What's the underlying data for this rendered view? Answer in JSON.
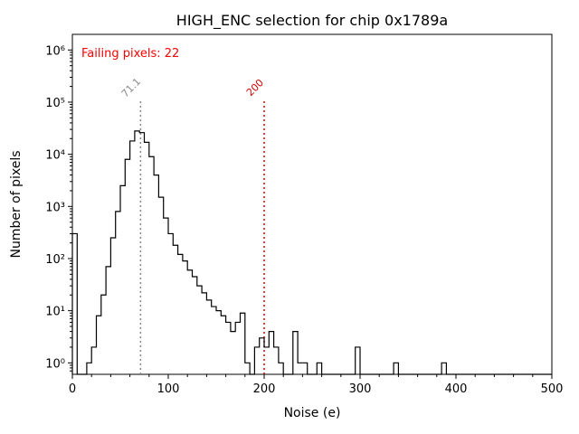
{
  "figure": {
    "background": "#ffffff"
  },
  "chart_data": {
    "type": "bar",
    "subtype": "step-histogram",
    "title": "HIGH_ENC selection for chip 0x1789a",
    "xlabel": "Noise (e)",
    "ylabel": "Number of pixels",
    "annotation": {
      "text": "Failing pixels: 22",
      "color": "#ff0000"
    },
    "line_color": "#000000",
    "x_ticks": [
      0,
      100,
      200,
      300,
      400,
      500
    ],
    "x_minor_tick_step": 20,
    "xlim": [
      0,
      500
    ],
    "y_log": true,
    "y_tick_labels": [
      "10⁰",
      "10¹",
      "10²",
      "10³",
      "10⁴",
      "10⁵",
      "10⁶"
    ],
    "y_tick_exponents": [
      0,
      1,
      2,
      3,
      4,
      5,
      6
    ],
    "y_range_exponents": [
      -0.22,
      6.3
    ],
    "bin_start": 0,
    "bin_width": 5,
    "counts": [
      300,
      0,
      0,
      1,
      2,
      8,
      20,
      70,
      250,
      800,
      2500,
      8000,
      18000,
      28000,
      26000,
      17000,
      9000,
      4000,
      1500,
      600,
      300,
      180,
      120,
      90,
      60,
      45,
      30,
      22,
      16,
      12,
      10,
      8,
      6,
      4,
      6,
      9,
      1,
      0,
      2,
      3,
      2,
      4,
      2,
      1,
      0,
      0,
      4,
      1,
      1,
      0,
      0,
      1,
      0,
      0,
      0,
      0,
      0,
      0,
      0,
      2,
      0,
      0,
      0,
      0,
      0,
      0,
      0,
      1,
      0,
      0,
      0,
      0,
      0,
      0,
      0,
      0,
      0,
      1,
      0,
      0,
      0,
      0,
      0,
      0,
      0,
      0,
      0,
      0,
      0,
      0,
      0,
      0,
      0,
      0,
      0,
      0,
      0,
      0,
      0,
      0
    ],
    "vlines": [
      {
        "x": 71.1,
        "label": "71.1",
        "color": "#888888",
        "style": "dotted"
      },
      {
        "x": 200,
        "label": "200",
        "color": "#d40000",
        "style": "dotted"
      }
    ]
  }
}
